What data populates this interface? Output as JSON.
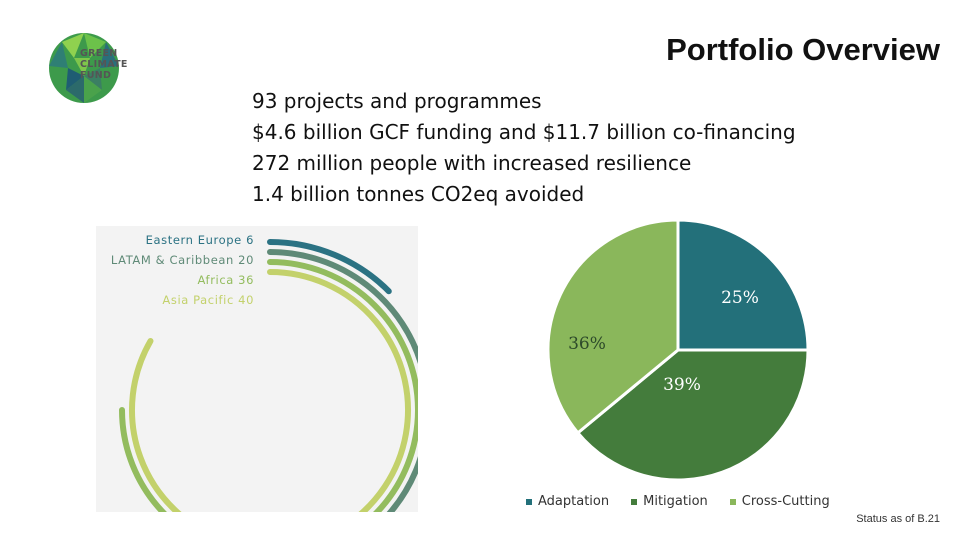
{
  "logo": {
    "lines": [
      "GREEN",
      "CLIMATE",
      "FUND"
    ]
  },
  "title": "Portfolio Overview",
  "stats": [
    "93 projects and programmes",
    "$4.6 billion GCF funding and $11.7 billion co-financing",
    "272 million people with increased resilience",
    "1.4 billion tonnes CO2eq avoided"
  ],
  "footnote": "Status as of B.21",
  "colors": {
    "adaptation": "#23707a",
    "mitigation": "#447c3c",
    "cross_cutting": "#8ab75b",
    "eastern_europe": "#2b7283",
    "latam": "#5f8a77",
    "africa": "#93bc5e",
    "asia_pacific": "#c3d16b"
  },
  "chart_data": [
    {
      "type": "radial-bar",
      "categories": [
        "Eastern Europe",
        "LATAM & Caribbean",
        "Africa",
        "Asia Pacific"
      ],
      "values": [
        6,
        20,
        36,
        40
      ],
      "labels": [
        "Eastern Europe 6",
        "LATAM & Caribbean 20",
        "Africa 36",
        "Asia Pacific 40"
      ],
      "value_labels": [
        "6",
        "20",
        "36",
        "40"
      ],
      "max": 48,
      "title": ""
    },
    {
      "type": "pie",
      "categories": [
        "Adaptation",
        "Mitigation",
        "Cross-Cutting"
      ],
      "values": [
        25,
        39,
        36
      ],
      "labels": [
        "25%",
        "39%",
        "36%"
      ],
      "legend": [
        "Adaptation",
        "Mitigation",
        "Cross-Cutting"
      ],
      "legend_position": "bottom",
      "title": ""
    }
  ]
}
